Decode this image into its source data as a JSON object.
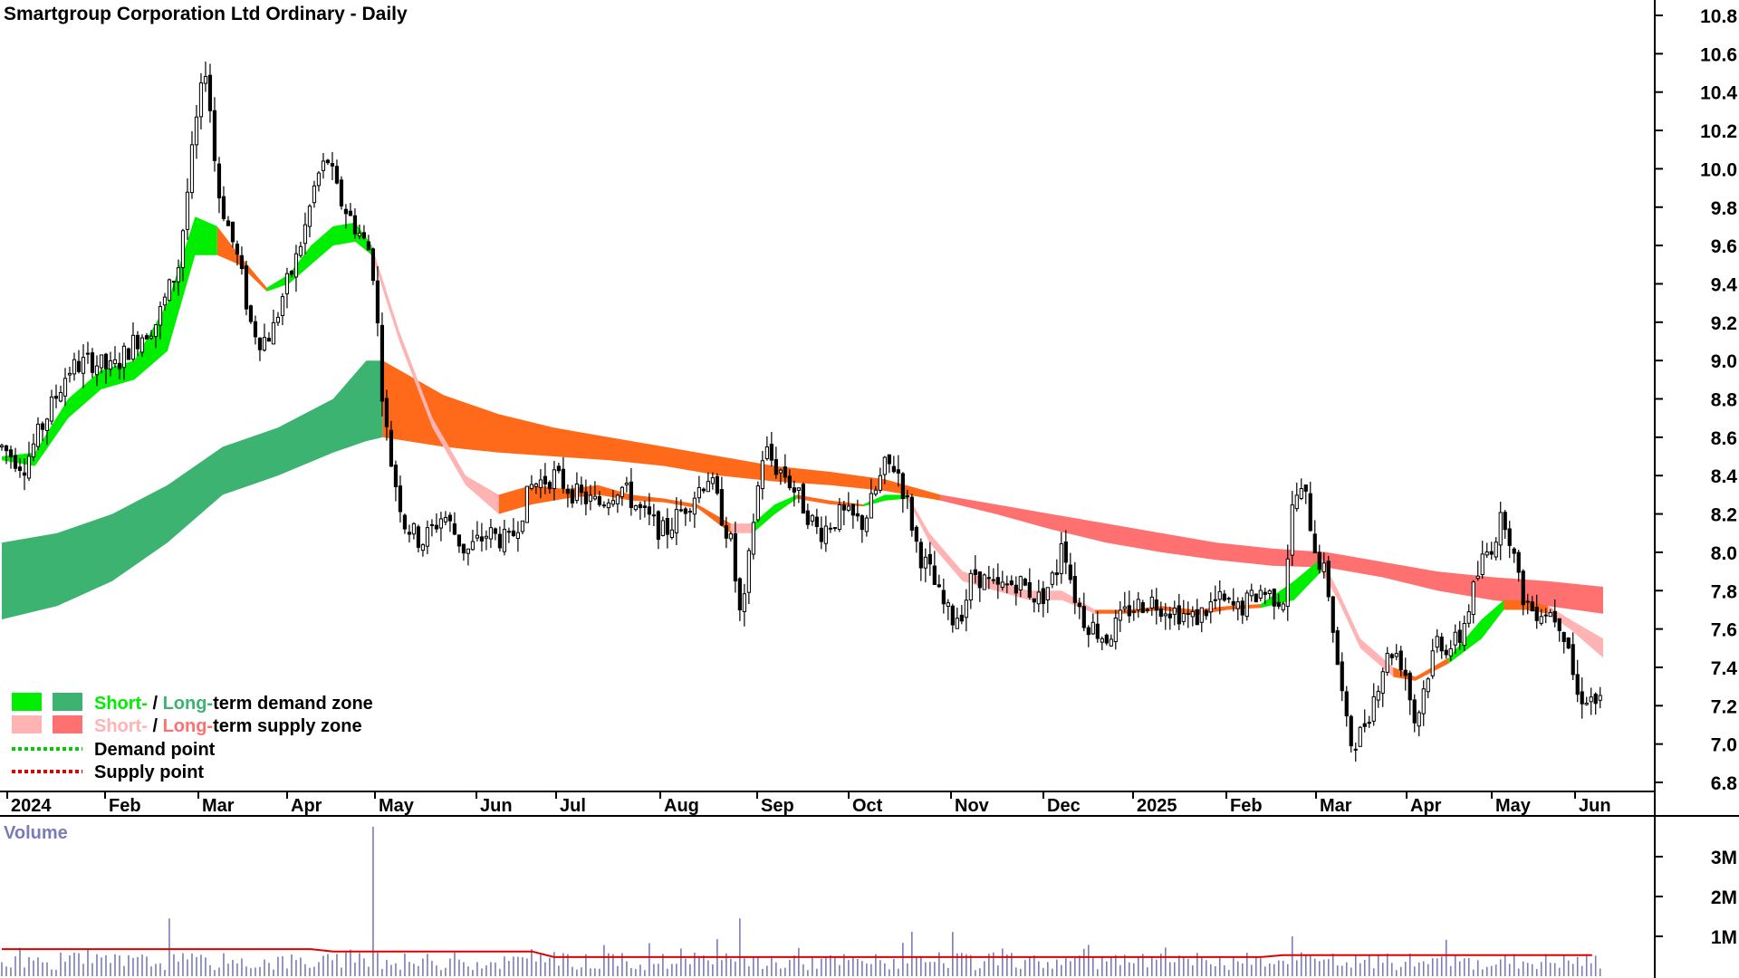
{
  "chart_data": {
    "type": "candlestick",
    "title": "Smartgroup Corporation Ltd Ordinary - Daily",
    "y_axis": {
      "ticks": [
        "10.8",
        "10.6",
        "10.4",
        "10.2",
        "10.0",
        "9.8",
        "9.6",
        "9.4",
        "9.2",
        "9.0",
        "8.8",
        "8.6",
        "8.4",
        "8.2",
        "8.0",
        "7.8",
        "7.6",
        "7.4",
        "7.2",
        "7.0",
        "6.8"
      ],
      "ylim": [
        6.7,
        10.85
      ],
      "position": "right"
    },
    "x_axis": {
      "labels": [
        "2024",
        "Feb",
        "Mar",
        "Apr",
        "May",
        "Jun",
        "Jul",
        "Aug",
        "Sep",
        "Oct",
        "Nov",
        "Dec",
        "2025",
        "Feb",
        "Mar",
        "Apr",
        "May",
        "Jun"
      ]
    },
    "price_path": [
      [
        0,
        8.55
      ],
      [
        20,
        8.45
      ],
      [
        40,
        8.7
      ],
      [
        60,
        8.95
      ],
      [
        80,
        9.0
      ],
      [
        100,
        8.95
      ],
      [
        120,
        9.1
      ],
      [
        140,
        9.2
      ],
      [
        160,
        9.5
      ],
      [
        175,
        10.2
      ],
      [
        185,
        10.55
      ],
      [
        195,
        9.9
      ],
      [
        205,
        9.7
      ],
      [
        215,
        9.5
      ],
      [
        225,
        9.2
      ],
      [
        235,
        9.1
      ],
      [
        245,
        9.15
      ],
      [
        255,
        9.35
      ],
      [
        265,
        9.5
      ],
      [
        275,
        9.7
      ],
      [
        285,
        9.95
      ],
      [
        295,
        10.05
      ],
      [
        305,
        9.85
      ],
      [
        315,
        9.75
      ],
      [
        325,
        9.65
      ],
      [
        335,
        9.55
      ],
      [
        340,
        9.2
      ],
      [
        345,
        8.8
      ],
      [
        350,
        8.55
      ],
      [
        355,
        8.4
      ],
      [
        365,
        8.15
      ],
      [
        380,
        8.05
      ],
      [
        400,
        8.2
      ],
      [
        420,
        8.0
      ],
      [
        440,
        8.1
      ],
      [
        460,
        8.05
      ],
      [
        480,
        8.35
      ],
      [
        500,
        8.4
      ],
      [
        520,
        8.3
      ],
      [
        540,
        8.25
      ],
      [
        560,
        8.35
      ],
      [
        580,
        8.2
      ],
      [
        600,
        8.1
      ],
      [
        620,
        8.25
      ],
      [
        640,
        8.4
      ],
      [
        660,
        8.05
      ],
      [
        670,
        7.6
      ],
      [
        680,
        8.15
      ],
      [
        690,
        8.55
      ],
      [
        700,
        8.45
      ],
      [
        710,
        8.4
      ],
      [
        720,
        8.3
      ],
      [
        740,
        8.1
      ],
      [
        760,
        8.2
      ],
      [
        780,
        8.15
      ],
      [
        800,
        8.45
      ],
      [
        810,
        8.45
      ],
      [
        820,
        8.25
      ],
      [
        830,
        8.0
      ],
      [
        840,
        7.9
      ],
      [
        850,
        7.75
      ],
      [
        860,
        7.65
      ],
      [
        870,
        7.7
      ],
      [
        880,
        7.9
      ],
      [
        900,
        7.8
      ],
      [
        920,
        7.85
      ],
      [
        940,
        7.75
      ],
      [
        955,
        7.9
      ],
      [
        960,
        8.1
      ],
      [
        970,
        7.8
      ],
      [
        980,
        7.65
      ],
      [
        1000,
        7.55
      ],
      [
        1020,
        7.7
      ],
      [
        1040,
        7.75
      ],
      [
        1060,
        7.7
      ],
      [
        1080,
        7.65
      ],
      [
        1100,
        7.75
      ],
      [
        1120,
        7.7
      ],
      [
        1140,
        7.8
      ],
      [
        1160,
        7.75
      ],
      [
        1170,
        8.3
      ],
      [
        1180,
        8.3
      ],
      [
        1190,
        8.0
      ],
      [
        1200,
        7.85
      ],
      [
        1210,
        7.4
      ],
      [
        1220,
        7.0
      ],
      [
        1230,
        7.05
      ],
      [
        1240,
        7.2
      ],
      [
        1250,
        7.4
      ],
      [
        1260,
        7.5
      ],
      [
        1270,
        7.4
      ],
      [
        1280,
        7.1
      ],
      [
        1290,
        7.35
      ],
      [
        1300,
        7.55
      ],
      [
        1310,
        7.5
      ],
      [
        1320,
        7.55
      ],
      [
        1330,
        7.75
      ],
      [
        1340,
        7.95
      ],
      [
        1350,
        8.05
      ],
      [
        1360,
        8.2
      ],
      [
        1365,
        8.1
      ],
      [
        1375,
        7.8
      ],
      [
        1385,
        7.7
      ],
      [
        1400,
        7.7
      ],
      [
        1410,
        7.65
      ],
      [
        1420,
        7.5
      ],
      [
        1425,
        7.25
      ],
      [
        1435,
        7.25
      ],
      [
        1450,
        7.2
      ]
    ],
    "short_term_zone": [
      [
        0,
        8.5,
        8.48
      ],
      [
        30,
        8.52,
        8.45
      ],
      [
        60,
        8.8,
        8.7
      ],
      [
        90,
        8.95,
        8.85
      ],
      [
        120,
        9.0,
        8.9
      ],
      [
        150,
        9.3,
        9.05
      ],
      [
        175,
        9.75,
        9.55
      ],
      [
        195,
        9.7,
        9.55
      ],
      [
        215,
        9.55,
        9.5
      ],
      [
        240,
        9.38,
        9.36
      ],
      [
        260,
        9.45,
        9.4
      ],
      [
        280,
        9.6,
        9.5
      ],
      [
        300,
        9.7,
        9.6
      ],
      [
        320,
        9.72,
        9.62
      ],
      [
        335,
        9.6,
        9.55
      ],
      [
        360,
        9.15,
        9.1
      ],
      [
        390,
        8.7,
        8.65
      ],
      [
        420,
        8.4,
        8.35
      ],
      [
        450,
        8.3,
        8.2
      ],
      [
        480,
        8.35,
        8.25
      ],
      [
        510,
        8.33,
        8.28
      ],
      [
        540,
        8.35,
        8.3
      ],
      [
        570,
        8.3,
        8.27
      ],
      [
        600,
        8.28,
        8.26
      ],
      [
        630,
        8.25,
        8.23
      ],
      [
        660,
        8.15,
        8.1
      ],
      [
        680,
        8.15,
        8.1
      ],
      [
        700,
        8.25,
        8.2
      ],
      [
        720,
        8.3,
        8.28
      ],
      [
        750,
        8.27,
        8.25
      ],
      [
        780,
        8.25,
        8.24
      ],
      [
        800,
        8.3,
        8.27
      ],
      [
        820,
        8.3,
        8.28
      ],
      [
        840,
        8.1,
        8.05
      ],
      [
        870,
        7.9,
        7.85
      ],
      [
        900,
        7.85,
        7.8
      ],
      [
        930,
        7.8,
        7.75
      ],
      [
        960,
        7.8,
        7.75
      ],
      [
        990,
        7.7,
        7.68
      ],
      [
        1020,
        7.7,
        7.68
      ],
      [
        1050,
        7.72,
        7.7
      ],
      [
        1080,
        7.7,
        7.67
      ],
      [
        1110,
        7.72,
        7.7
      ],
      [
        1140,
        7.73,
        7.71
      ],
      [
        1170,
        7.85,
        7.75
      ],
      [
        1195,
        7.97,
        7.9
      ],
      [
        1210,
        7.8,
        7.75
      ],
      [
        1230,
        7.55,
        7.5
      ],
      [
        1260,
        7.4,
        7.35
      ],
      [
        1280,
        7.35,
        7.33
      ],
      [
        1310,
        7.45,
        7.42
      ],
      [
        1340,
        7.65,
        7.55
      ],
      [
        1360,
        7.75,
        7.7
      ],
      [
        1380,
        7.75,
        7.7
      ],
      [
        1400,
        7.72,
        7.68
      ],
      [
        1420,
        7.65,
        7.6
      ],
      [
        1450,
        7.55,
        7.45
      ]
    ],
    "long_term_zone": [
      [
        0,
        8.05,
        7.65
      ],
      [
        50,
        8.1,
        7.72
      ],
      [
        100,
        8.2,
        7.85
      ],
      [
        150,
        8.35,
        8.05
      ],
      [
        200,
        8.55,
        8.3
      ],
      [
        250,
        8.65,
        8.4
      ],
      [
        300,
        8.8,
        8.52
      ],
      [
        330,
        9.0,
        8.58
      ],
      [
        345,
        9.0,
        8.6
      ],
      [
        400,
        8.82,
        8.55
      ],
      [
        450,
        8.72,
        8.52
      ],
      [
        500,
        8.65,
        8.5
      ],
      [
        550,
        8.6,
        8.48
      ],
      [
        600,
        8.55,
        8.45
      ],
      [
        650,
        8.5,
        8.4
      ],
      [
        700,
        8.45,
        8.37
      ],
      [
        750,
        8.42,
        8.35
      ],
      [
        800,
        8.38,
        8.32
      ],
      [
        850,
        8.3,
        8.27
      ],
      [
        900,
        8.25,
        8.2
      ],
      [
        950,
        8.2,
        8.12
      ],
      [
        1000,
        8.15,
        8.05
      ],
      [
        1050,
        8.1,
        8.0
      ],
      [
        1100,
        8.05,
        7.96
      ],
      [
        1150,
        8.02,
        7.93
      ],
      [
        1200,
        8.0,
        7.92
      ],
      [
        1250,
        7.95,
        7.87
      ],
      [
        1300,
        7.9,
        7.8
      ],
      [
        1350,
        7.87,
        7.75
      ],
      [
        1400,
        7.85,
        7.72
      ],
      [
        1450,
        7.82,
        7.68
      ]
    ],
    "volume": {
      "label": "Volume",
      "ticks": [
        "3M",
        "2M",
        "1M"
      ],
      "ylim": [
        0,
        3.5
      ],
      "average_line_color": "#dd0000",
      "spikes": [
        [
          150,
          1.45
        ],
        [
          335,
          3.75
        ],
        [
          670,
          1.45
        ],
        [
          1170,
          1.0
        ]
      ]
    },
    "legend": {
      "placement": "bottom-left",
      "items": [
        {
          "prefix": "Short-",
          "sep": " / ",
          "mid": "Long-",
          "suffix": "term demand zone",
          "colors": [
            "#00ee00",
            "#3cb371"
          ]
        },
        {
          "prefix": "Short-",
          "sep": " / ",
          "mid": "Long-",
          "suffix": "term supply zone",
          "colors": [
            "#ffb3b3",
            "#ff7070"
          ]
        },
        {
          "label": "Demand point",
          "color": "#00cc00"
        },
        {
          "label": "Supply point",
          "color": "#dd0000"
        }
      ]
    },
    "colors": {
      "short_demand": "#00ee00",
      "long_demand": "#3cb371",
      "short_supply_light": "#ffb3b3",
      "short_supply_orange": "#ff6a1a",
      "long_supply": "#ff7070",
      "volume_bar": "#7b7bb8"
    }
  }
}
